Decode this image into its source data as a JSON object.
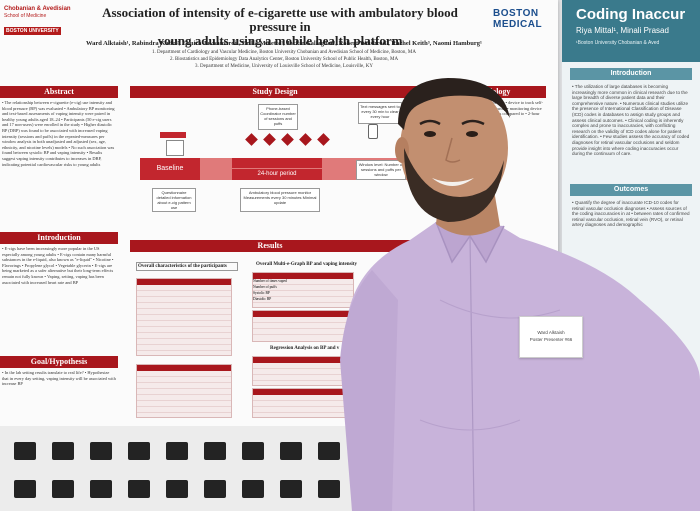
{
  "poster": {
    "logo": {
      "line1": "Chobanian & Avedisian",
      "line2": "School of Medicine",
      "line3": "BOSTON UNIVERSITY"
    },
    "title_line1": "Association of intensity of e-cigarette use with ambulatory blood pressure in",
    "title_line2": "young adults using a mobile health platform",
    "authors": "Ward Alktaish¹, Rabindra Kadel², Elmira Javanmardi¹, Erika Minette¹, Jackie Gallagher¹, Robert Weisbrod¹, Rachel Keith³, Naomi Hamburg¹",
    "affil1": "1. Department of Cardiology and Vascular Medicine, Boston University Chobanian and Avedisian School of Medicine, Boston, MA",
    "affil2": "2. Biostatistics and Epidemiology Data Analytics Center, Boston University School of Public Health, Boston, MA",
    "affil3": "3. Department of Medicine, University of Louisville School of Medicine, Louisville, KY",
    "bmc": "BOSTON MEDICAL",
    "sections": {
      "abstract": "Abstract",
      "study_design": "Study Design",
      "methodology": "Methodology",
      "introduction": "Introduction",
      "goal": "Goal/Hypothesis",
      "results": "Results"
    },
    "abstract_text": "• The relationship between e-cigarette (e-cig) use intensity and blood pressure (BP) was evaluated • Ambulatory BP monitoring and text-based assessments of vaping intensity were paired in healthy young adults aged 18–24 • Participants (50 e-cig users and 17 non-users) were enrolled in the study • Higher diastolic BP (DBP) was found to be associated with increased vaping intensity (sessions and puffs) in the repeated-measures per window analysis in both unadjusted and adjusted (sex, age, ethnicity, and nicotine levels) models • No such association was found between systolic BP and vaping intensity • Results suggest vaping intensity contributes to increases in DBP, indicating potential cardiovascular risks to young adults",
    "intro_text": "• E-cigs have been increasingly more popular in the US especially among young adults • E-cigs contain many harmful substances in the e-liquid, also known as \"e-liquid\" • Nicotine • Flavorings • Propylene glycol • Vegetable glycerin • E-cigs are being marketed as a safer alternative but their long-term effects remain not fully known • Vaping, setting, vaping has been associated with increased heart rate and BP",
    "goal_text": "• In the lab setting results translate to real life? • Hypothesize that in every day setting, vaping intensity will be associated with increase BP",
    "study_labels": {
      "baseline": "Baseline",
      "window": "24-hour period",
      "box_phone": "Phone-based Coordinator number of sessions and puffs",
      "box_text": "Text messages sent to every 30 min to clear every hour",
      "box_q": "Questionnaire detailed information about e-cig pattern use",
      "box_bp": "Ambulatory blood pressure monitor Measurements every 30 minutes Minimal update",
      "box_window": "Window level: Number of sessions and puffs per window"
    },
    "method_text": "• ages 18 to 24 • e-cig users and non-user • device to track self-reported • each 30 minute intervals during • monitoring device • recorded every 30 minutes • Data was compared to • 2-hour windows using • participant level",
    "results_tbl1_title": "Overall characteristics of the participants",
    "results_tbl2_title": "Overall Multi-e-Graph BP and vaping intensity",
    "results_tbl3_title": "Regression Analysis on BP and v",
    "results_rows": {
      "r1": "Number of times vaped",
      "r2": "Number of puffs",
      "r3": "Systolic BP",
      "r4": "Diastolic BP"
    }
  },
  "poster2": {
    "title": "Coding Inaccur",
    "authors": "Riya Mittal¹, Minali Prasad",
    "affil": "¹Boston University Chobanian & Aved",
    "intro_head": "Introduction",
    "intro_text": "• The utilization of large databases is becoming increasingly more common in clinical research due to the large breadth of diverse patient data and their comprehensive nature. • Numerous clinical studies utilize the presence of International Classification of Disease (ICD) codes in databases to assign study groups and assess clinical outcomes. • Clinical coding is inherently complex and prone to inaccuracies, with conflicting research on the validity of ICD codes alone for patient identification. • Few studies assess the accuracy of coded diagnoses for retinal vascular occlusions and seldom provide insight into where coding inaccuracies occur during the continuum of care.",
    "outcomes_head": "Outcomes",
    "outcomes_text": "• Quantify the degree of inaccurate ICD-10 codes for retinal vascular occlusion diagnoses • Assess sources of the coding inaccuracies in at • between rates of confirmed retinal vascular occlusion, retinal vein (RVO), or retinal artery diagnoses and demographic"
  },
  "badge": {
    "name": "Ward Alktaish",
    "sub": "Poster Presenter #66"
  },
  "colors": {
    "accent": "#a8171d",
    "poster2": "#3a7a8c",
    "shirt": "#c9b4dc"
  }
}
